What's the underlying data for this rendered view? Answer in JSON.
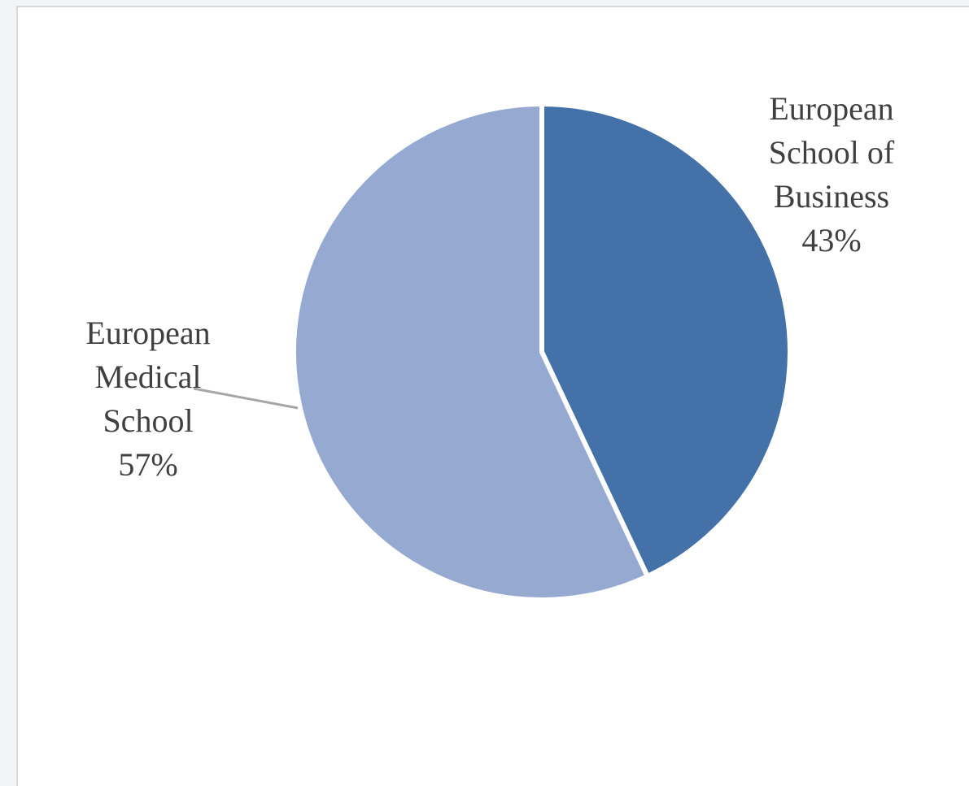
{
  "chart_data": {
    "type": "pie",
    "slices": [
      {
        "name": "European School of Business",
        "label_lines": [
          "European",
          "School of",
          "Business"
        ],
        "percent_label": "43%",
        "value": 43,
        "color": "#4472a8"
      },
      {
        "name": "European Medical School",
        "label_lines": [
          "European",
          "Medical",
          "School"
        ],
        "percent_label": "57%",
        "value": 57,
        "color": "#95a9d1"
      }
    ],
    "start_angle": "12 o'clock",
    "direction": "clockwise",
    "legend": "none",
    "data_labels": "outside, category name and percentage"
  }
}
